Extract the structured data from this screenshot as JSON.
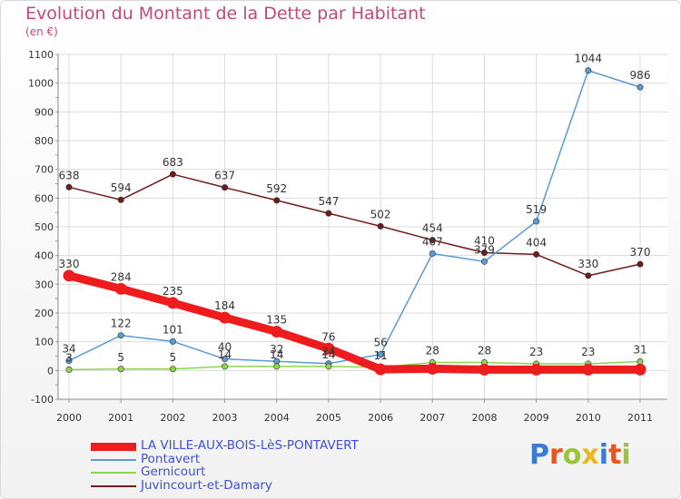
{
  "title": "Evolution du Montant de la Dette par Habitant",
  "subtitle": "(en €)",
  "logo": {
    "text": "Proxiti",
    "colors": [
      "#3a7bd5",
      "#e8551e",
      "#9ac43a",
      "#e8b81e",
      "#3a7bd5",
      "#e8551e",
      "#9ac43a"
    ]
  },
  "chart_data": {
    "type": "line",
    "categories": [
      "2000",
      "2001",
      "2002",
      "2003",
      "2004",
      "2005",
      "2006",
      "2007",
      "2008",
      "2009",
      "2010",
      "2011"
    ],
    "y_ticks": [
      -100,
      0,
      100,
      200,
      300,
      400,
      500,
      600,
      700,
      800,
      900,
      1000,
      1100
    ],
    "ylim": [
      -100,
      1100
    ],
    "grid": true,
    "legend_position": "bottom-left",
    "series": [
      {
        "name": "LA VILLE-AUX-BOIS-LèS-PONTAVERT",
        "color": "#ee1c1c",
        "values": [
          330,
          284,
          235,
          184,
          135,
          76,
          4,
          6,
          3,
          3,
          3,
          3
        ],
        "labels": [
          "330",
          "284",
          "235",
          "184",
          "135",
          "76",
          "",
          "",
          "",
          "",
          "",
          ""
        ]
      },
      {
        "name": "Pontavert",
        "color": "#5a9bd4",
        "values": [
          34,
          122,
          101,
          40,
          32,
          24,
          56,
          407,
          379,
          519,
          1044,
          986
        ],
        "labels": [
          "34",
          "122",
          "101",
          "40",
          "32",
          "24",
          "56",
          "407",
          "379",
          "519",
          "1044",
          "986"
        ]
      },
      {
        "name": "Gernicourt",
        "color": "#8cd64e",
        "values": [
          3,
          5,
          5,
          14,
          14,
          14,
          11,
          28,
          28,
          23,
          23,
          31
        ],
        "labels": [
          "3",
          "5",
          "5",
          "14",
          "14",
          "14",
          "11",
          "28",
          "28",
          "23",
          "23",
          "31"
        ]
      },
      {
        "name": "Juvincourt-et-Damary",
        "color": "#6e1c1c",
        "values": [
          638,
          594,
          683,
          637,
          592,
          547,
          502,
          454,
          410,
          404,
          330,
          370
        ],
        "labels": [
          "638",
          "594",
          "683",
          "637",
          "592",
          "547",
          "502",
          "454",
          "410",
          "404",
          "330",
          "370"
        ]
      }
    ]
  }
}
